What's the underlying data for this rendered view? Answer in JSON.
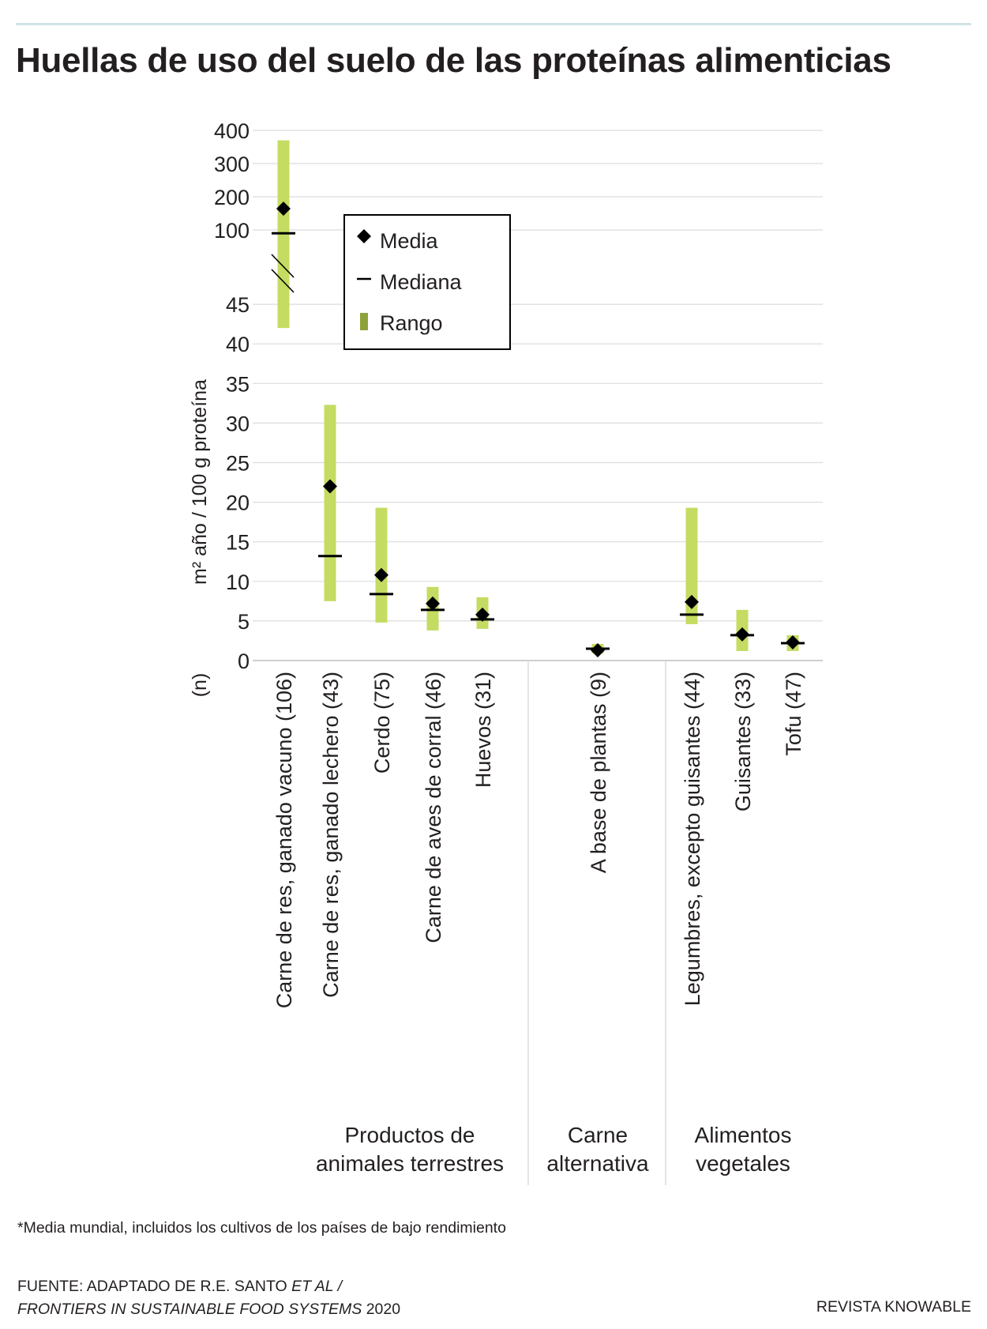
{
  "title": "Huellas de uso del suelo de las proteínas alimenticias",
  "legend": {
    "mean": "Media",
    "median": "Mediana",
    "range": "Rango"
  },
  "footnote": "*Media mundial, incluidos los cultivos de los países de bajo rendimiento",
  "source": {
    "line1_prefix": "FUENTE: ADAPTADO DE R.E. SANTO ",
    "line1_italic": "ET AL /",
    "line2_italic": "FRONTIERS IN SUSTAINABLE FOOD SYSTEMS",
    "line2_suffix": " 2020"
  },
  "credit": "REVISTA KNOWABLE",
  "colors": {
    "range": "#c4dc62",
    "marker": "#000000",
    "grid": "#dcdcdc",
    "text": "#231f20"
  },
  "chart_data": {
    "type": "range-dot",
    "ylabel": "m² año / 100 g proteína",
    "n_label": "(n)",
    "y_lower_ticks": [
      0,
      5,
      10,
      15,
      20,
      25,
      30,
      35,
      40,
      45
    ],
    "y_upper_ticks": [
      100,
      200,
      300,
      400
    ],
    "axis_break": "45–100",
    "groups": [
      {
        "label": [
          "Productos de",
          "animales terrestres"
        ]
      },
      {
        "label": [
          "Carne",
          "alternativa"
        ]
      },
      {
        "label": [
          "Alimentos",
          "vegetales"
        ]
      }
    ],
    "series": [
      {
        "label": "Carne de res, ganado vacuno (106)",
        "group": 0,
        "range": [
          42,
          370
        ],
        "mean": 164,
        "median": 90
      },
      {
        "label": "Carne de res, ganado lechero (43)",
        "group": 0,
        "range": [
          7.5,
          32.3
        ],
        "mean": 22,
        "median": 13.2
      },
      {
        "label": "Cerdo (75)",
        "group": 0,
        "range": [
          4.8,
          19.3
        ],
        "mean": 10.8,
        "median": 8.4
      },
      {
        "label": "Carne de aves de corral (46)",
        "group": 0,
        "range": [
          3.8,
          9.3
        ],
        "mean": 7.2,
        "median": 6.4
      },
      {
        "label": "Huevos (31)",
        "group": 0,
        "range": [
          4.0,
          8.0
        ],
        "mean": 5.8,
        "median": 5.2
      },
      {
        "label": "A base de plantas (9)",
        "group": 1,
        "range": [
          0.9,
          2.1
        ],
        "mean": 1.3,
        "median": 1.5
      },
      {
        "label": "Legumbres, excepto guisantes (44)",
        "group": 2,
        "range": [
          4.6,
          19.3
        ],
        "mean": 7.4,
        "median": 5.8
      },
      {
        "label": "Guisantes (33)",
        "group": 2,
        "range": [
          1.2,
          6.4
        ],
        "mean": 3.3,
        "median": 3.2
      },
      {
        "label": "Tofu (47)",
        "group": 2,
        "range": [
          1.2,
          3.2
        ],
        "mean": 2.3,
        "median": 2.2
      }
    ]
  }
}
